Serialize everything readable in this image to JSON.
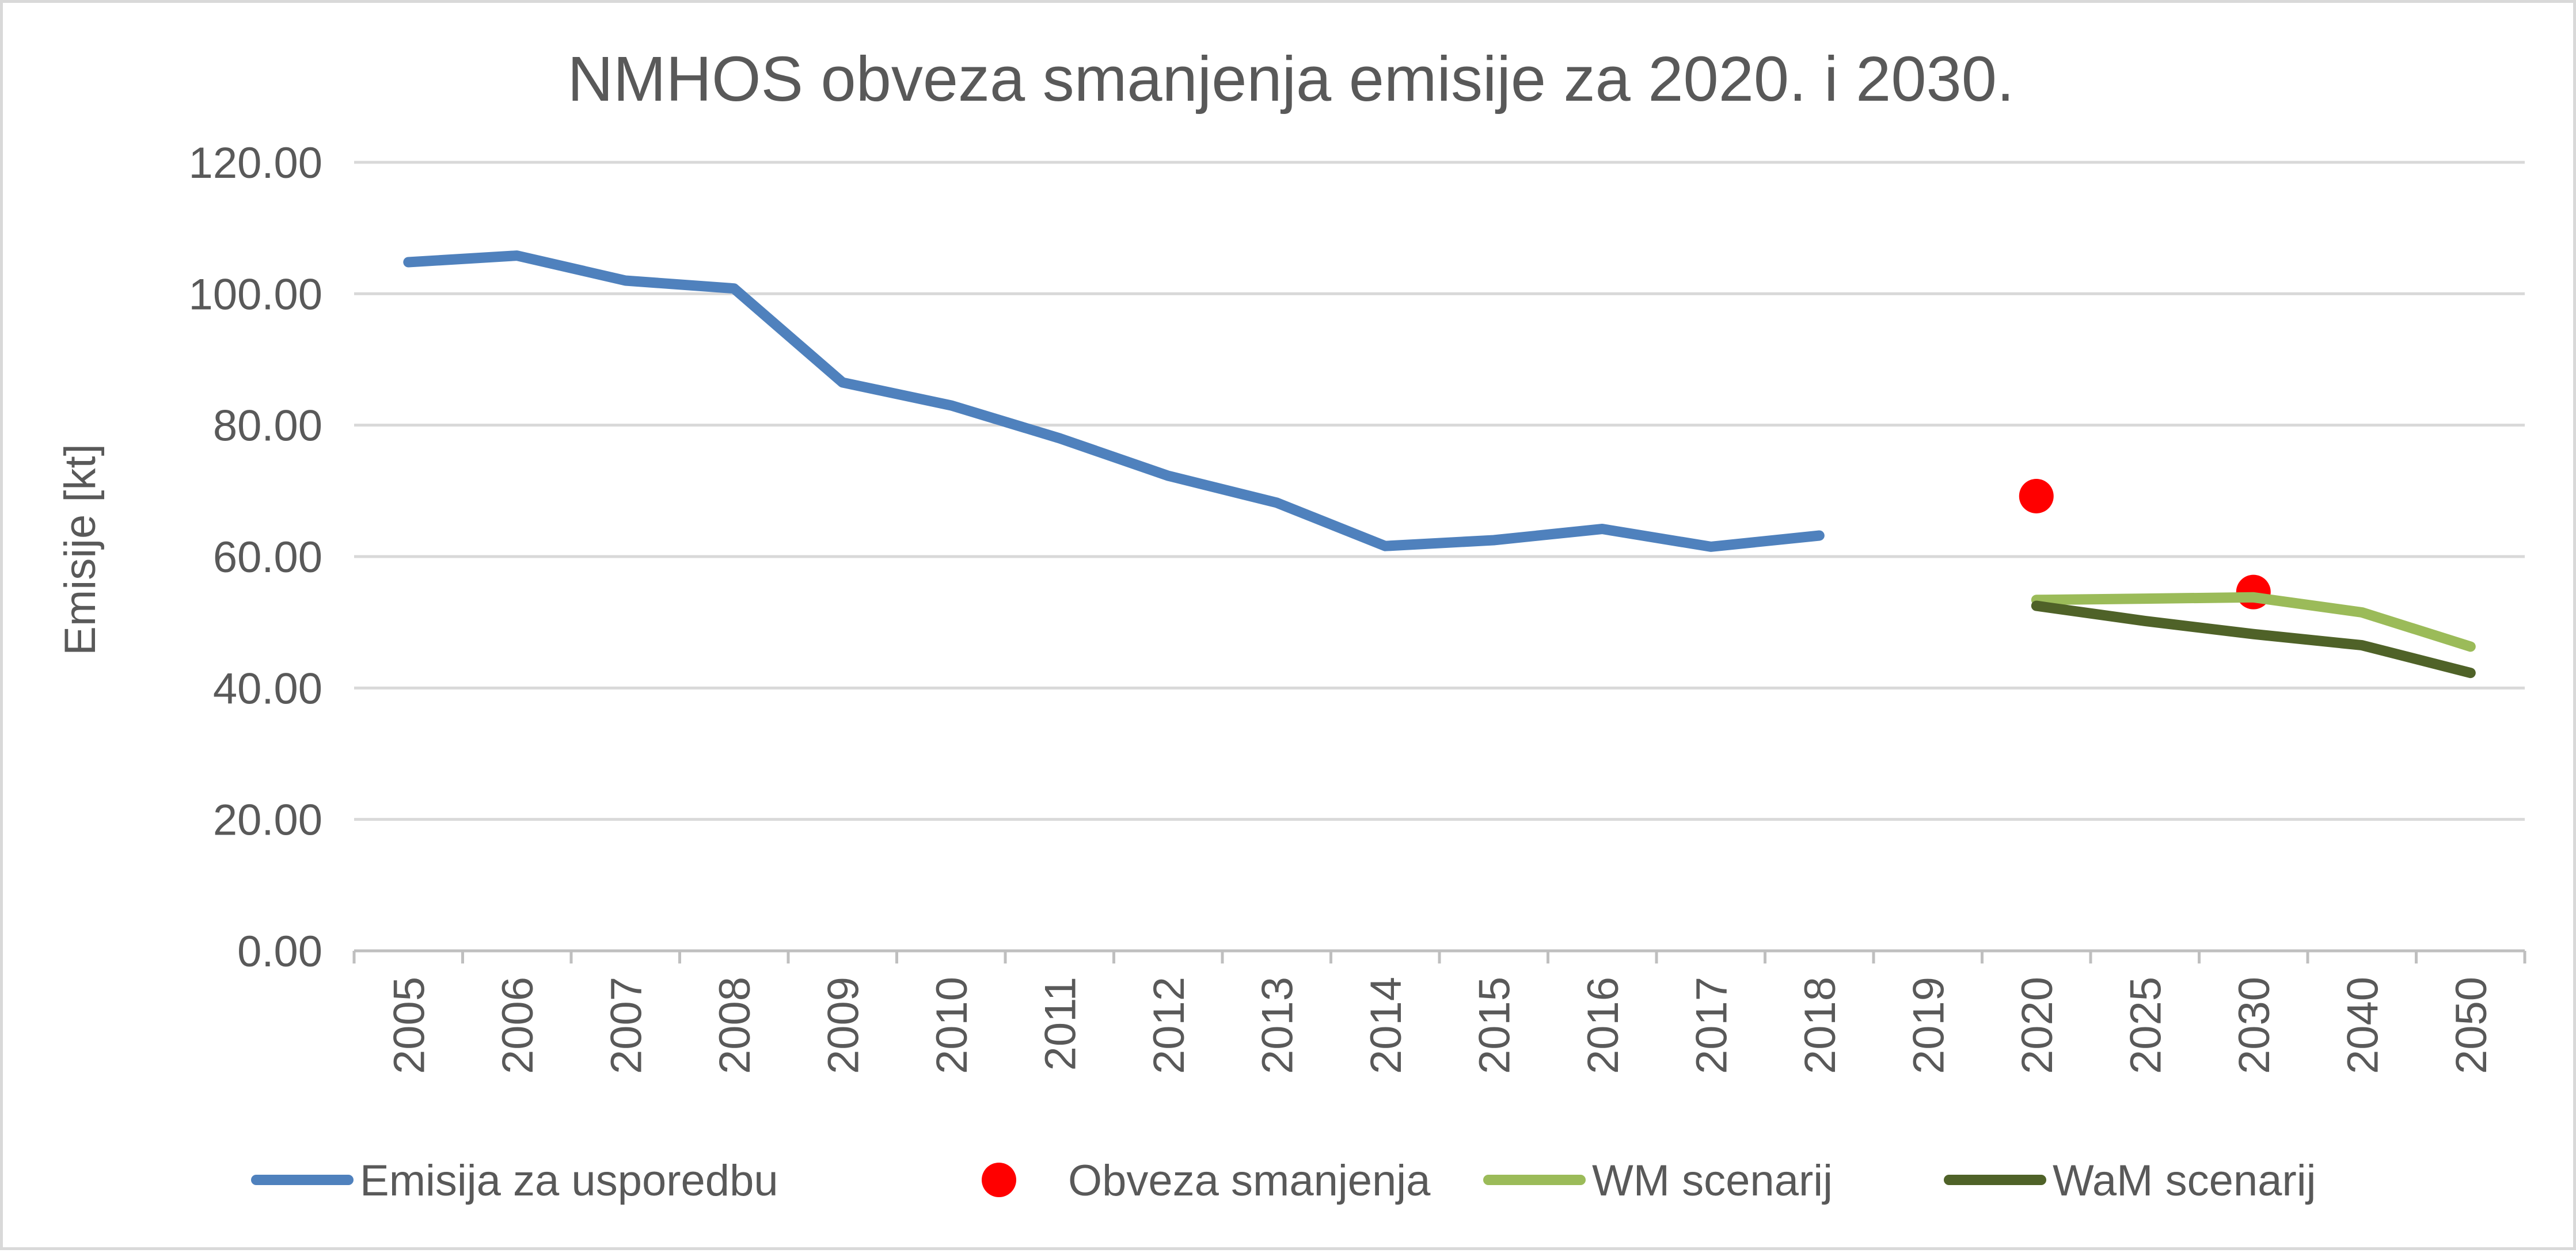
{
  "chart_data": {
    "type": "line",
    "title": "NMHOS obveza smanjenja emisije za 2020. i 2030.",
    "xlabel": "",
    "ylabel": "Emisije [kt]",
    "ylim": [
      0,
      120
    ],
    "yticks": [
      "0.00",
      "20.00",
      "40.00",
      "60.00",
      "80.00",
      "100.00",
      "120.00"
    ],
    "yticks_values": [
      0,
      20,
      40,
      60,
      80,
      100,
      120
    ],
    "categories": [
      "2005",
      "2006",
      "2007",
      "2008",
      "2009",
      "2010",
      "2011",
      "2012",
      "2013",
      "2014",
      "2015",
      "2016",
      "2017",
      "2018",
      "2019",
      "2020",
      "2025",
      "2030",
      "2040",
      "2050"
    ],
    "grid": true,
    "legend_position": "bottom",
    "series": [
      {
        "name": "Emisija za usporedbu",
        "kind": "line",
        "color": "#4f81bd",
        "values": [
          104.8,
          105.8,
          102.0,
          100.8,
          86.5,
          83.0,
          78.0,
          72.3,
          68.2,
          61.6,
          62.5,
          64.2,
          61.5,
          63.2,
          null,
          null,
          null,
          null,
          null,
          null
        ]
      },
      {
        "name": "Obveza smanjenja",
        "kind": "marker",
        "color": "#ff0000",
        "values": [
          null,
          null,
          null,
          null,
          null,
          null,
          null,
          null,
          null,
          null,
          null,
          null,
          null,
          null,
          null,
          69.2,
          null,
          54.6,
          null,
          null
        ]
      },
      {
        "name": "WM scenarij",
        "kind": "line",
        "color": "#9bbb59",
        "values": [
          null,
          null,
          null,
          null,
          null,
          null,
          null,
          null,
          null,
          null,
          null,
          null,
          null,
          null,
          null,
          53.4,
          53.6,
          53.8,
          51.5,
          46.3
        ]
      },
      {
        "name": "WaM scenarij",
        "kind": "line",
        "color": "#4f6228",
        "values": [
          null,
          null,
          null,
          null,
          null,
          null,
          null,
          null,
          null,
          null,
          null,
          null,
          null,
          null,
          null,
          52.5,
          50.2,
          48.2,
          46.5,
          42.3
        ]
      }
    ]
  }
}
